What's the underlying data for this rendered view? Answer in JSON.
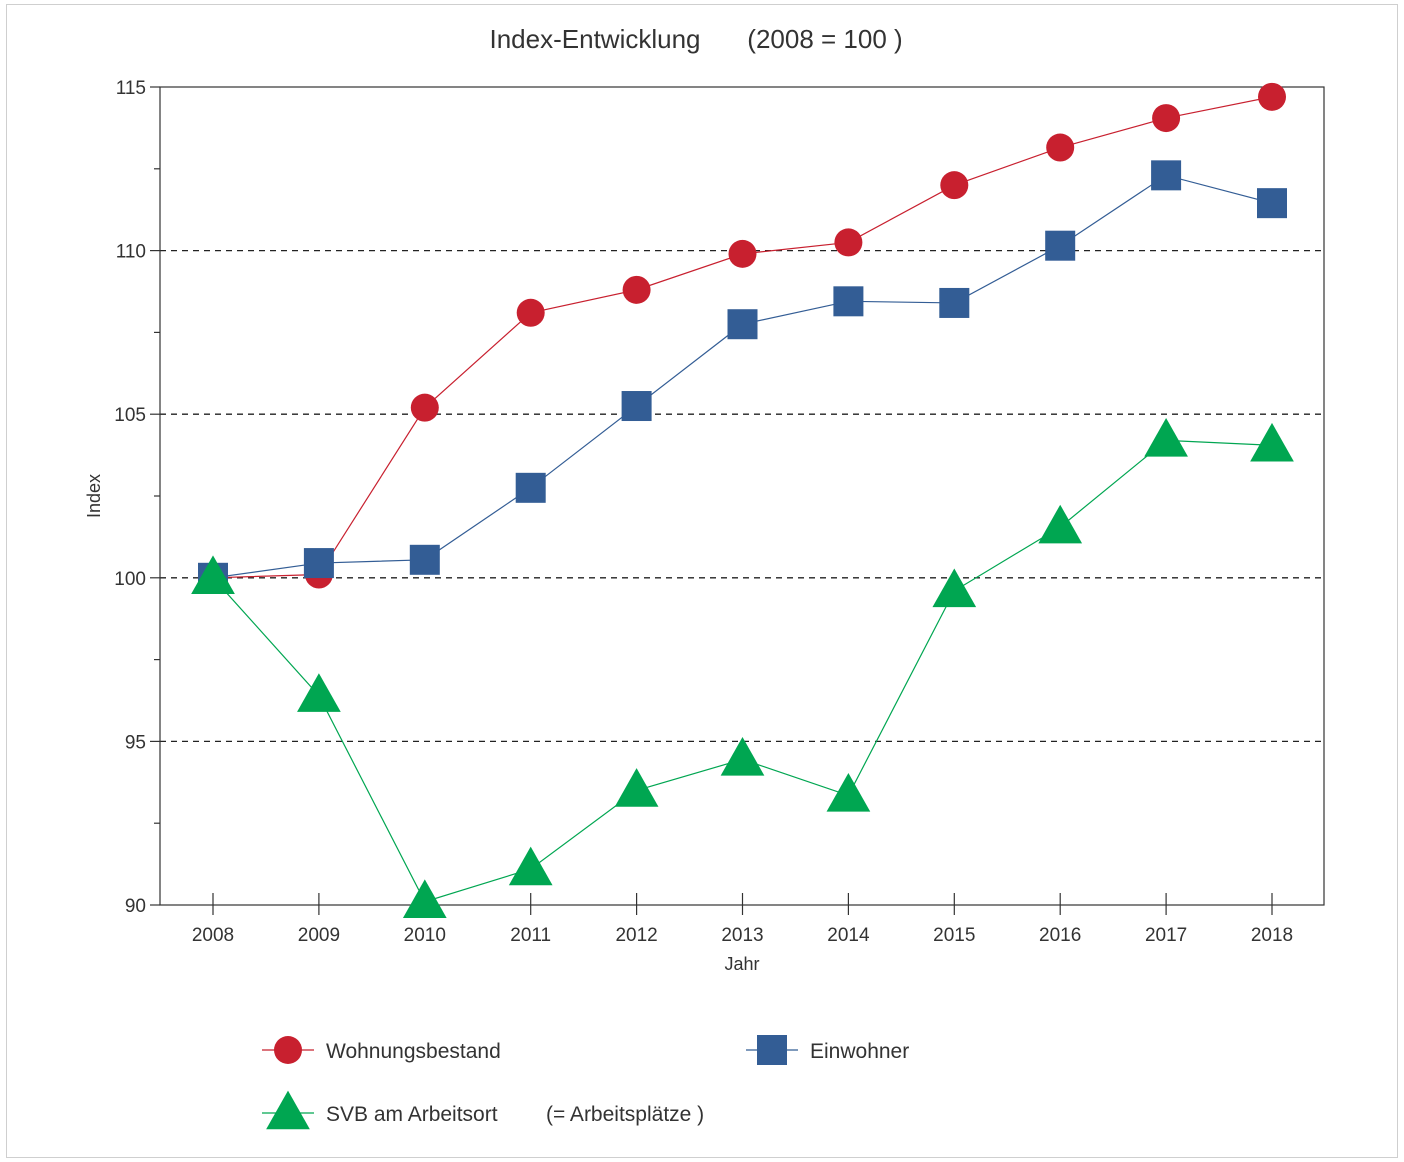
{
  "chart_data": {
    "type": "line",
    "title": "Index-Entwicklung",
    "subtitle": "(2008 = 100 )",
    "xlabel": "Jahr",
    "ylabel": "Index",
    "categories": [
      "2008",
      "2009",
      "2010",
      "2011",
      "2012",
      "2013",
      "2014",
      "2015",
      "2016",
      "2017",
      "2018"
    ],
    "ylim": [
      90,
      115
    ],
    "yticks": [
      90,
      95,
      100,
      105,
      110,
      115
    ],
    "grid": "dashed horizontal at 95, 100, 105, 110",
    "legend_position": "bottom",
    "series": [
      {
        "name": "Wohnungsbestand",
        "marker": "circle",
        "color": "#c8202f",
        "values": [
          100.0,
          100.1,
          105.2,
          108.1,
          108.8,
          109.9,
          110.25,
          112.0,
          113.15,
          114.05,
          114.7
        ]
      },
      {
        "name": "Einwohner",
        "marker": "square",
        "color": "#335d95",
        "values": [
          100.0,
          100.45,
          100.55,
          102.75,
          105.25,
          107.75,
          108.45,
          108.4,
          110.15,
          112.3,
          111.45
        ]
      },
      {
        "name": "SVB am Arbeitsort",
        "name_note": "(= Arbeitsplätze )",
        "marker": "triangle",
        "color": "#00a651",
        "values": [
          100.0,
          96.4,
          90.1,
          91.1,
          93.5,
          94.45,
          93.35,
          99.6,
          101.55,
          104.2,
          104.05
        ]
      }
    ]
  }
}
